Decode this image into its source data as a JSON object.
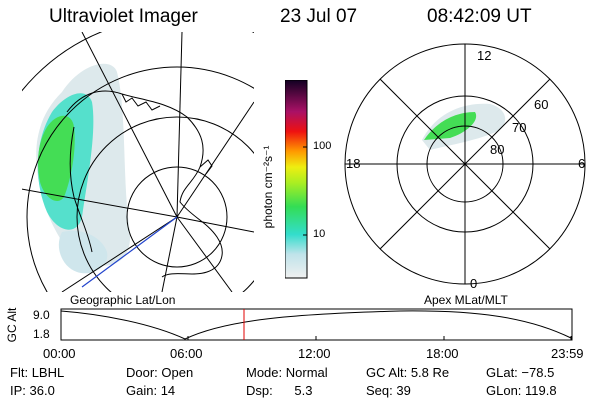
{
  "header": {
    "instrument": "Ultraviolet Imager",
    "date": "23 Jul 07",
    "time": "08:42:09 UT"
  },
  "colorbar": {
    "unit_label": "photon cm⁻²s⁻¹",
    "ticks": [
      "100",
      "10"
    ]
  },
  "left_panel": {
    "caption": "Geographic Lat/Lon"
  },
  "right_panel": {
    "caption": "Apex MLat/MLT",
    "mlt_labels": {
      "top": "12",
      "left": "18",
      "right": "6",
      "bottom": "0"
    },
    "lat_labels": [
      "60",
      "70",
      "80"
    ]
  },
  "timeline": {
    "axis_label": "GC Alt",
    "y_ticks": [
      "9.0",
      "1.8"
    ],
    "x_ticks": [
      "00:00",
      "06:00",
      "12:00",
      "18:00",
      "23:59"
    ],
    "marker_color": "#e00000"
  },
  "info": {
    "flt_label": "Flt:",
    "flt_value": "LBHL",
    "ip_label": "IP:",
    "ip_value": "36.0",
    "door_label": "Door:",
    "door_value": "Open",
    "gain_label": "Gain:",
    "gain_value": "14",
    "mode_label": "Mode:",
    "mode_value": "Normal",
    "dsp_label": "Dsp:",
    "dsp_value": "5.3",
    "gcalt_label": "GC Alt:",
    "gcalt_value": "5.8 Re",
    "seq_label": "Seq:",
    "seq_value": "39",
    "glat_label": "GLat:",
    "glat_value": "−78.5",
    "glon_label": "GLon:",
    "glon_value": "119.8"
  },
  "colors": {
    "aurora_green": "#33dd44",
    "aurora_cyan": "#33dddd",
    "aurora_pale": "#dde9ec"
  }
}
